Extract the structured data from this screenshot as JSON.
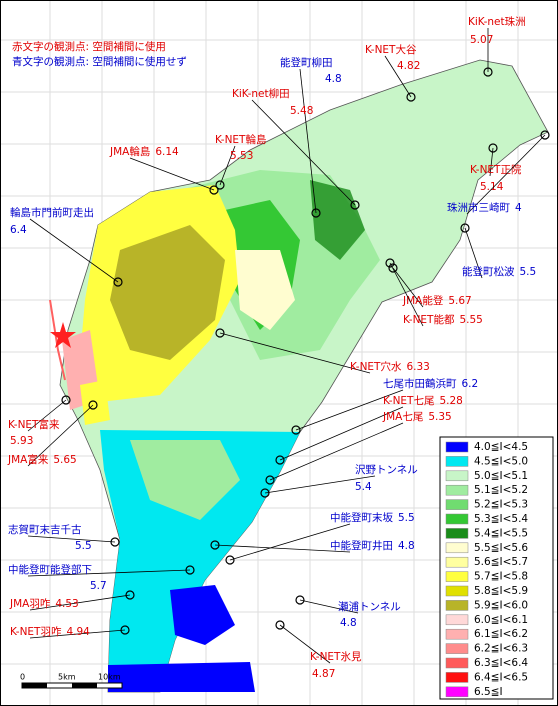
{
  "notes": [
    {
      "text": "赤文字の観測点: 空間補間に使用",
      "color": "#e00000"
    },
    {
      "text": "青文字の観測点: 空間補間に使用せず",
      "color": "#0000cc"
    }
  ],
  "stations": [
    {
      "name": "KiK-net珠洲",
      "value": 5.07,
      "color": "#e00000"
    },
    {
      "name": "K-NET大谷",
      "value": 4.82,
      "color": "#e00000"
    },
    {
      "name": "能登町柳田",
      "value": 4.8,
      "color": "#0000cc"
    },
    {
      "name": "KiK-net柳田",
      "value": 5.48,
      "color": "#e00000"
    },
    {
      "name": "K-NET輪島",
      "value": 5.53,
      "color": "#e00000"
    },
    {
      "name": "JMA輪島",
      "value": 6.14,
      "color": "#e00000"
    },
    {
      "name": "K-NET正院",
      "value": 5.14,
      "color": "#e00000"
    },
    {
      "name": "珠洲市三崎町",
      "value": 4,
      "color": "#0000cc"
    },
    {
      "name": "輪島市門前町走出",
      "value": 6.4,
      "color": "#0000cc"
    },
    {
      "name": "能登町松波",
      "value": 5.5,
      "color": "#0000cc"
    },
    {
      "name": "JMA能登",
      "value": 5.67,
      "color": "#e00000"
    },
    {
      "name": "K-NET能都",
      "value": 5.55,
      "color": "#e00000"
    },
    {
      "name": "K-NET穴水",
      "value": 6.33,
      "color": "#e00000"
    },
    {
      "name": "七尾市田鶴浜町",
      "value": 6.2,
      "color": "#0000cc"
    },
    {
      "name": "K-NET七尾",
      "value": 5.28,
      "color": "#e00000"
    },
    {
      "name": "JMA七尾",
      "value": 5.35,
      "color": "#e00000"
    },
    {
      "name": "K-NET富来",
      "value": 5.93,
      "color": "#e00000"
    },
    {
      "name": "JMA富来",
      "value": 5.65,
      "color": "#e00000"
    },
    {
      "name": "沢野トンネル",
      "value": 5.4,
      "color": "#0000cc"
    },
    {
      "name": "志賀町末吉千古",
      "value": 5.5,
      "color": "#0000cc"
    },
    {
      "name": "中能登町末坂",
      "value": 5.5,
      "color": "#0000cc"
    },
    {
      "name": "中能登町井田",
      "value": 4.8,
      "color": "#0000cc"
    },
    {
      "name": "中能登町能登部下",
      "value": 5.7,
      "color": "#0000cc"
    },
    {
      "name": "JMA羽咋",
      "value": 4.53,
      "color": "#e00000"
    },
    {
      "name": "瀬浦トンネル",
      "value": 4.8,
      "color": "#0000cc"
    },
    {
      "name": "K-NET羽咋",
      "value": 4.94,
      "color": "#e00000"
    },
    {
      "name": "K-NET氷見",
      "value": 4.87,
      "color": "#e00000"
    }
  ],
  "legend": [
    {
      "label": "4.0≦I<4.5",
      "color": "#0000ff"
    },
    {
      "label": "4.5≦I<5.0",
      "color": "#00e8f0"
    },
    {
      "label": "5.0≦I<5.1",
      "color": "#c8f5c8"
    },
    {
      "label": "5.1≦I<5.2",
      "color": "#a0eca0"
    },
    {
      "label": "5.2≦I<5.3",
      "color": "#70dc70"
    },
    {
      "label": "5.3≦I<5.4",
      "color": "#34c834"
    },
    {
      "label": "5.4≦I<5.5",
      "color": "#1a8c1a"
    },
    {
      "label": "5.5≦I<5.6",
      "color": "#fffdd0"
    },
    {
      "label": "5.6≦I<5.7",
      "color": "#ffffa0"
    },
    {
      "label": "5.7≦I<5.8",
      "color": "#ffff40"
    },
    {
      "label": "5.8≦I<5.9",
      "color": "#e0e000"
    },
    {
      "label": "5.9≦I<6.0",
      "color": "#b8b428"
    },
    {
      "label": "6.0≦I<6.1",
      "color": "#ffd8d8"
    },
    {
      "label": "6.1≦I<6.2",
      "color": "#ffb0b0"
    },
    {
      "label": "6.2≦I<6.3",
      "color": "#ff8c8c"
    },
    {
      "label": "6.3≦I<6.4",
      "color": "#ff5a5a"
    },
    {
      "label": "6.4≦I<6.5",
      "color": "#ff1010"
    },
    {
      "label": "6.5≦I",
      "color": "#ff00ff"
    }
  ],
  "scale": [
    "0",
    "5km",
    "10km"
  ]
}
